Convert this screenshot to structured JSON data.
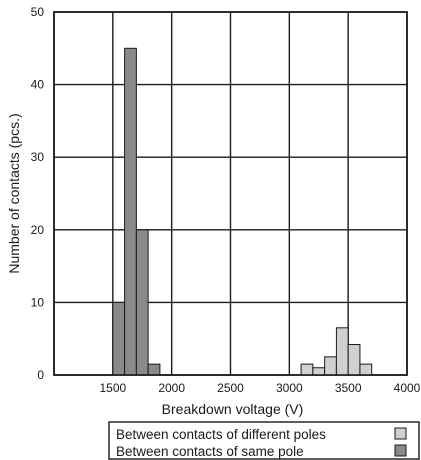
{
  "chart_data": {
    "type": "bar",
    "title": "",
    "xlabel": "Breakdown voltage (V)",
    "ylabel": "Number of contacts (pcs.)",
    "xlim": [
      1000,
      4000
    ],
    "ylim": [
      0,
      50
    ],
    "x_ticks": [
      1500,
      2000,
      2500,
      3000,
      3500,
      4000
    ],
    "y_ticks": [
      0,
      10,
      20,
      30,
      40,
      50
    ],
    "grid": true,
    "bin_width": 100,
    "legend_position": "bottom-right",
    "series": [
      {
        "name": "Between contacts of different poles",
        "color": "#d0d0d0",
        "x": [
          3150,
          3250,
          3350,
          3450,
          3550,
          3650
        ],
        "values": [
          1.5,
          1,
          2.5,
          6.5,
          4.2,
          1.5
        ]
      },
      {
        "name": "Between contacts of same pole",
        "color": "#8a8a8a",
        "x": [
          1550,
          1650,
          1750,
          1850
        ],
        "values": [
          10,
          45,
          20,
          1.5
        ]
      }
    ]
  }
}
